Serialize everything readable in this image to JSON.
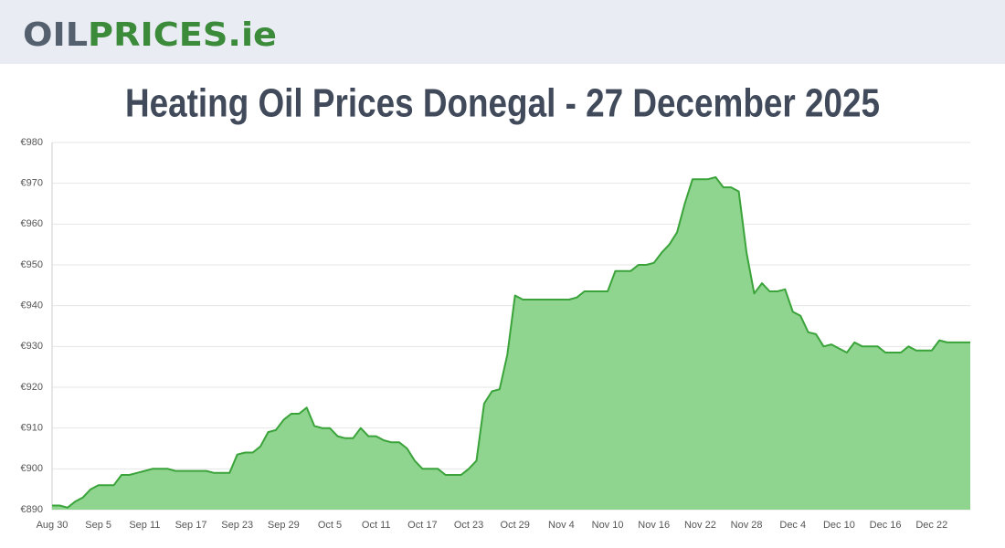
{
  "header": {
    "logo_main": "OIL",
    "logo_accent": "PRICES.ie"
  },
  "chart_data": {
    "type": "area",
    "title": "Heating Oil Prices Donegal - 27 December 2025",
    "color": "#3aa33a",
    "fill": "#8fd48f",
    "grid": true,
    "categories": [
      "Aug 30",
      null,
      null,
      null,
      null,
      null,
      "Sep 5",
      null,
      null,
      null,
      null,
      null,
      "Sep 11",
      null,
      null,
      null,
      null,
      null,
      "Sep 17",
      null,
      null,
      null,
      null,
      null,
      "Sep 23",
      null,
      null,
      null,
      null,
      null,
      "Sep 29",
      null,
      null,
      null,
      null,
      null,
      "Oct 5",
      null,
      null,
      null,
      null,
      null,
      "Oct 11",
      null,
      null,
      null,
      null,
      null,
      "Oct 17",
      null,
      null,
      null,
      null,
      null,
      "Oct 23",
      null,
      null,
      null,
      null,
      null,
      "Oct 29",
      null,
      null,
      null,
      null,
      null,
      "Nov 4",
      null,
      null,
      null,
      null,
      null,
      "Nov 10",
      null,
      null,
      null,
      null,
      null,
      "Nov 16",
      null,
      null,
      null,
      null,
      null,
      "Nov 22",
      null,
      null,
      null,
      null,
      null,
      "Nov 28",
      null,
      null,
      null,
      null,
      null,
      "Dec 4",
      null,
      null,
      null,
      null,
      null,
      "Dec 10",
      null,
      null,
      null,
      null,
      null,
      "Dec 16",
      null,
      null,
      null,
      null,
      null,
      "Dec 22",
      null,
      null,
      null,
      null,
      null
    ],
    "values": [
      891,
      891,
      890.5,
      892,
      893,
      895,
      896,
      896,
      896,
      898.5,
      898.5,
      899,
      899.5,
      900,
      900,
      900,
      899.5,
      899.5,
      899.5,
      899.5,
      899.5,
      899,
      899,
      899,
      903.5,
      904,
      904,
      905.5,
      909,
      909.5,
      912,
      913.5,
      913.5,
      915,
      910.5,
      910,
      910,
      908,
      907.5,
      907.5,
      910,
      908,
      908,
      907,
      906.5,
      906.5,
      905,
      902,
      900,
      900,
      900,
      898.5,
      898.5,
      898.5,
      900,
      902,
      916,
      919,
      919.5,
      928,
      942.5,
      941.5,
      941.5,
      941.5,
      941.5,
      941.5,
      941.5,
      941.5,
      942,
      943.5,
      943.5,
      943.5,
      943.5,
      948.5,
      948.5,
      948.5,
      950,
      950,
      950.5,
      953,
      955,
      958,
      965,
      971,
      971,
      971,
      971.5,
      969,
      969,
      968,
      953,
      943,
      945.5,
      943.5,
      943.5,
      944,
      938.5,
      937.5,
      933.5,
      933,
      930,
      930.5,
      929.5,
      928.5,
      931,
      930,
      930,
      930,
      928.5,
      928.5,
      928.5,
      930,
      929,
      929,
      929,
      931.5,
      931,
      931,
      931,
      931
    ],
    "ylim": [
      890,
      980
    ],
    "yticks": [
      {
        "value": 890,
        "label": "€890"
      },
      {
        "value": 900,
        "label": "€900"
      },
      {
        "value": 910,
        "label": "€910"
      },
      {
        "value": 920,
        "label": "€920"
      },
      {
        "value": 930,
        "label": "€930"
      },
      {
        "value": 940,
        "label": "€940"
      },
      {
        "value": 950,
        "label": "€950"
      },
      {
        "value": 960,
        "label": "€960"
      },
      {
        "value": 970,
        "label": "€970"
      },
      {
        "value": 980,
        "label": "€980"
      }
    ]
  }
}
